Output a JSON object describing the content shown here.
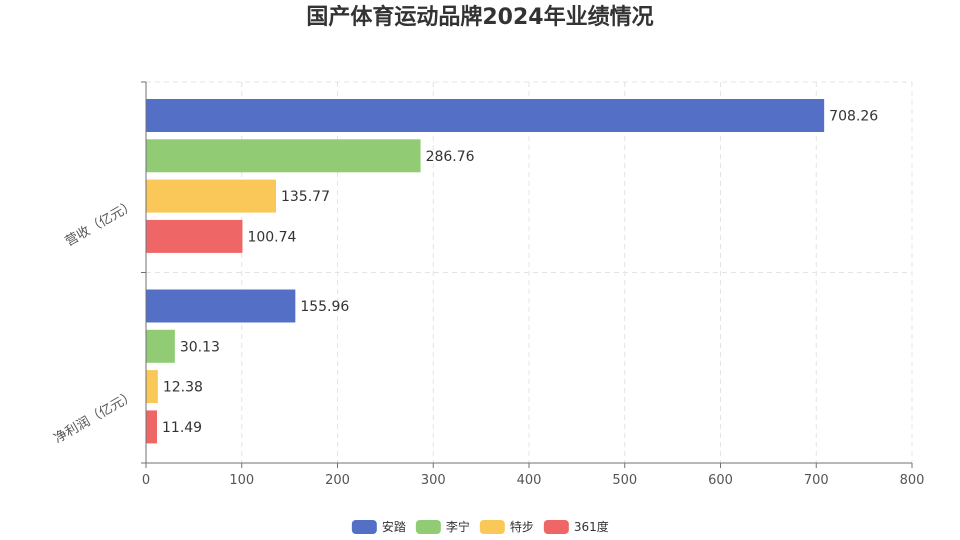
{
  "chart_data": {
    "type": "bar",
    "orientation": "horizontal",
    "title": "国产体育运动品牌2024年业绩情况",
    "categories": [
      "营收（亿元）",
      "净利润（亿元）"
    ],
    "series": [
      {
        "name": "安踏",
        "values": [
          708.26,
          155.96
        ],
        "color": "#5470c6"
      },
      {
        "name": "李宁",
        "values": [
          286.76,
          30.13
        ],
        "color": "#91cc75"
      },
      {
        "name": "特步",
        "values": [
          135.77,
          12.38
        ],
        "color": "#fac858"
      },
      {
        "name": "361度",
        "values": [
          100.74,
          11.49
        ],
        "color": "#ee6666"
      }
    ],
    "xlim": [
      0,
      800
    ],
    "xticks": [
      0,
      100,
      200,
      300,
      400,
      500,
      600,
      700,
      800
    ],
    "grid": true,
    "legend_position": "bottom"
  }
}
